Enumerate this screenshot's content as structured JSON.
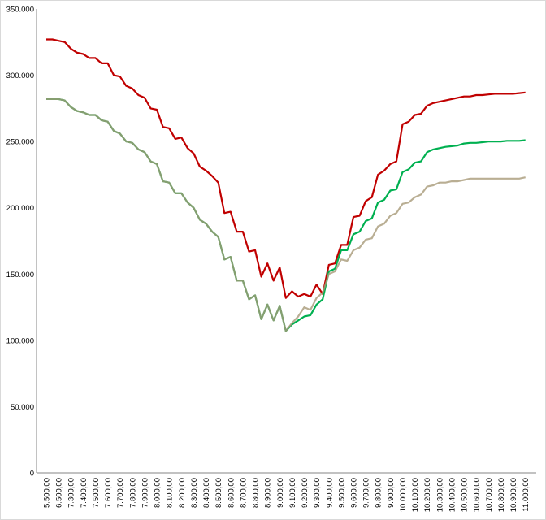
{
  "chart_data": {
    "type": "line",
    "title": "",
    "xlabel": "",
    "ylabel": "",
    "ylim": [
      0,
      350000
    ],
    "y_ticks": [
      "0",
      "50.000",
      "100.000",
      "150.000",
      "200.000",
      "250.000",
      "300.000",
      "350.000"
    ],
    "y_tick_values": [
      0,
      50000,
      100000,
      150000,
      200000,
      250000,
      300000,
      350000
    ],
    "x_tick_labels": [
      "5.500,00",
      "6.500,00",
      "7.300,00",
      "7.400,00",
      "7.500,00",
      "7.600,00",
      "7.700,00",
      "7.800,00",
      "7.900,00",
      "8.000,00",
      "8.100,00",
      "8.200,00",
      "8.300,00",
      "8.400,00",
      "8.500,00",
      "8.600,00",
      "8.700,00",
      "8.800,00",
      "8.900,00",
      "9.000,00",
      "9.100,00",
      "9.200,00",
      "9.300,00",
      "9.400,00",
      "9.500,00",
      "9.600,00",
      "9.700,00",
      "9.800,00",
      "9.900,00",
      "10.000,00",
      "10.100,00",
      "10.200,00",
      "10.300,00",
      "10.400,00",
      "10.500,00",
      "10.600,00",
      "10.700,00",
      "10.800,00",
      "10.900,00",
      "11.000,00"
    ],
    "points_per_label": 2,
    "grid": false,
    "legend": "none",
    "series": [
      {
        "name": "red",
        "color": "#c00000",
        "values_thousands": [
          327,
          327,
          326,
          325,
          320,
          317,
          316,
          313,
          313,
          309,
          309,
          300,
          299,
          292,
          290,
          285,
          283,
          275,
          274,
          261,
          260,
          252,
          253,
          245,
          241,
          231,
          228,
          224,
          219,
          196,
          197,
          182,
          182,
          167,
          168,
          148,
          158,
          145,
          155,
          132,
          137,
          133,
          135,
          133,
          142,
          135,
          157,
          158,
          172,
          172,
          193,
          194,
          205,
          208,
          225,
          228,
          233,
          235,
          263,
          265,
          270,
          271,
          277,
          279,
          280,
          281,
          282,
          283,
          284,
          284,
          285,
          285,
          285.5,
          286,
          286,
          286,
          286,
          286.5,
          287
        ]
      },
      {
        "name": "green",
        "color": "#00b050",
        "values_thousands": [
          282,
          282,
          282,
          281,
          276,
          273,
          272,
          270,
          270,
          266,
          265,
          258,
          256,
          250,
          249,
          244,
          242,
          235,
          233,
          220,
          219,
          211,
          211,
          204,
          200,
          191,
          188,
          182,
          178,
          161,
          163,
          145,
          145,
          131,
          134,
          116,
          127,
          115,
          126,
          107,
          112,
          115,
          118,
          119,
          127,
          131,
          152,
          154,
          168,
          168,
          180,
          182,
          190,
          192,
          204,
          206,
          213,
          214,
          227,
          229,
          234,
          235,
          242,
          244,
          245,
          246,
          246.5,
          247,
          248.5,
          249,
          249,
          249.5,
          250,
          250,
          250,
          250.5,
          250.5,
          250.5,
          251
        ]
      },
      {
        "name": "tan",
        "color": "#a89a78",
        "values_thousands": [
          282,
          282,
          282,
          281,
          276,
          273,
          272,
          270,
          270,
          266,
          265,
          258,
          256,
          250,
          249,
          244,
          242,
          235,
          233,
          220,
          219,
          211,
          211,
          204,
          200,
          191,
          188,
          182,
          178,
          161,
          163,
          145,
          145,
          131,
          134,
          116,
          127,
          115,
          126,
          107,
          113,
          118,
          125,
          123,
          132,
          136,
          150,
          152,
          161,
          160,
          168,
          170,
          176,
          177,
          186,
          188,
          194,
          196,
          203,
          204,
          208,
          210,
          216,
          217,
          219,
          219,
          220,
          220,
          221,
          222,
          222,
          222,
          222,
          222,
          222,
          222,
          222,
          222,
          223
        ]
      }
    ]
  }
}
